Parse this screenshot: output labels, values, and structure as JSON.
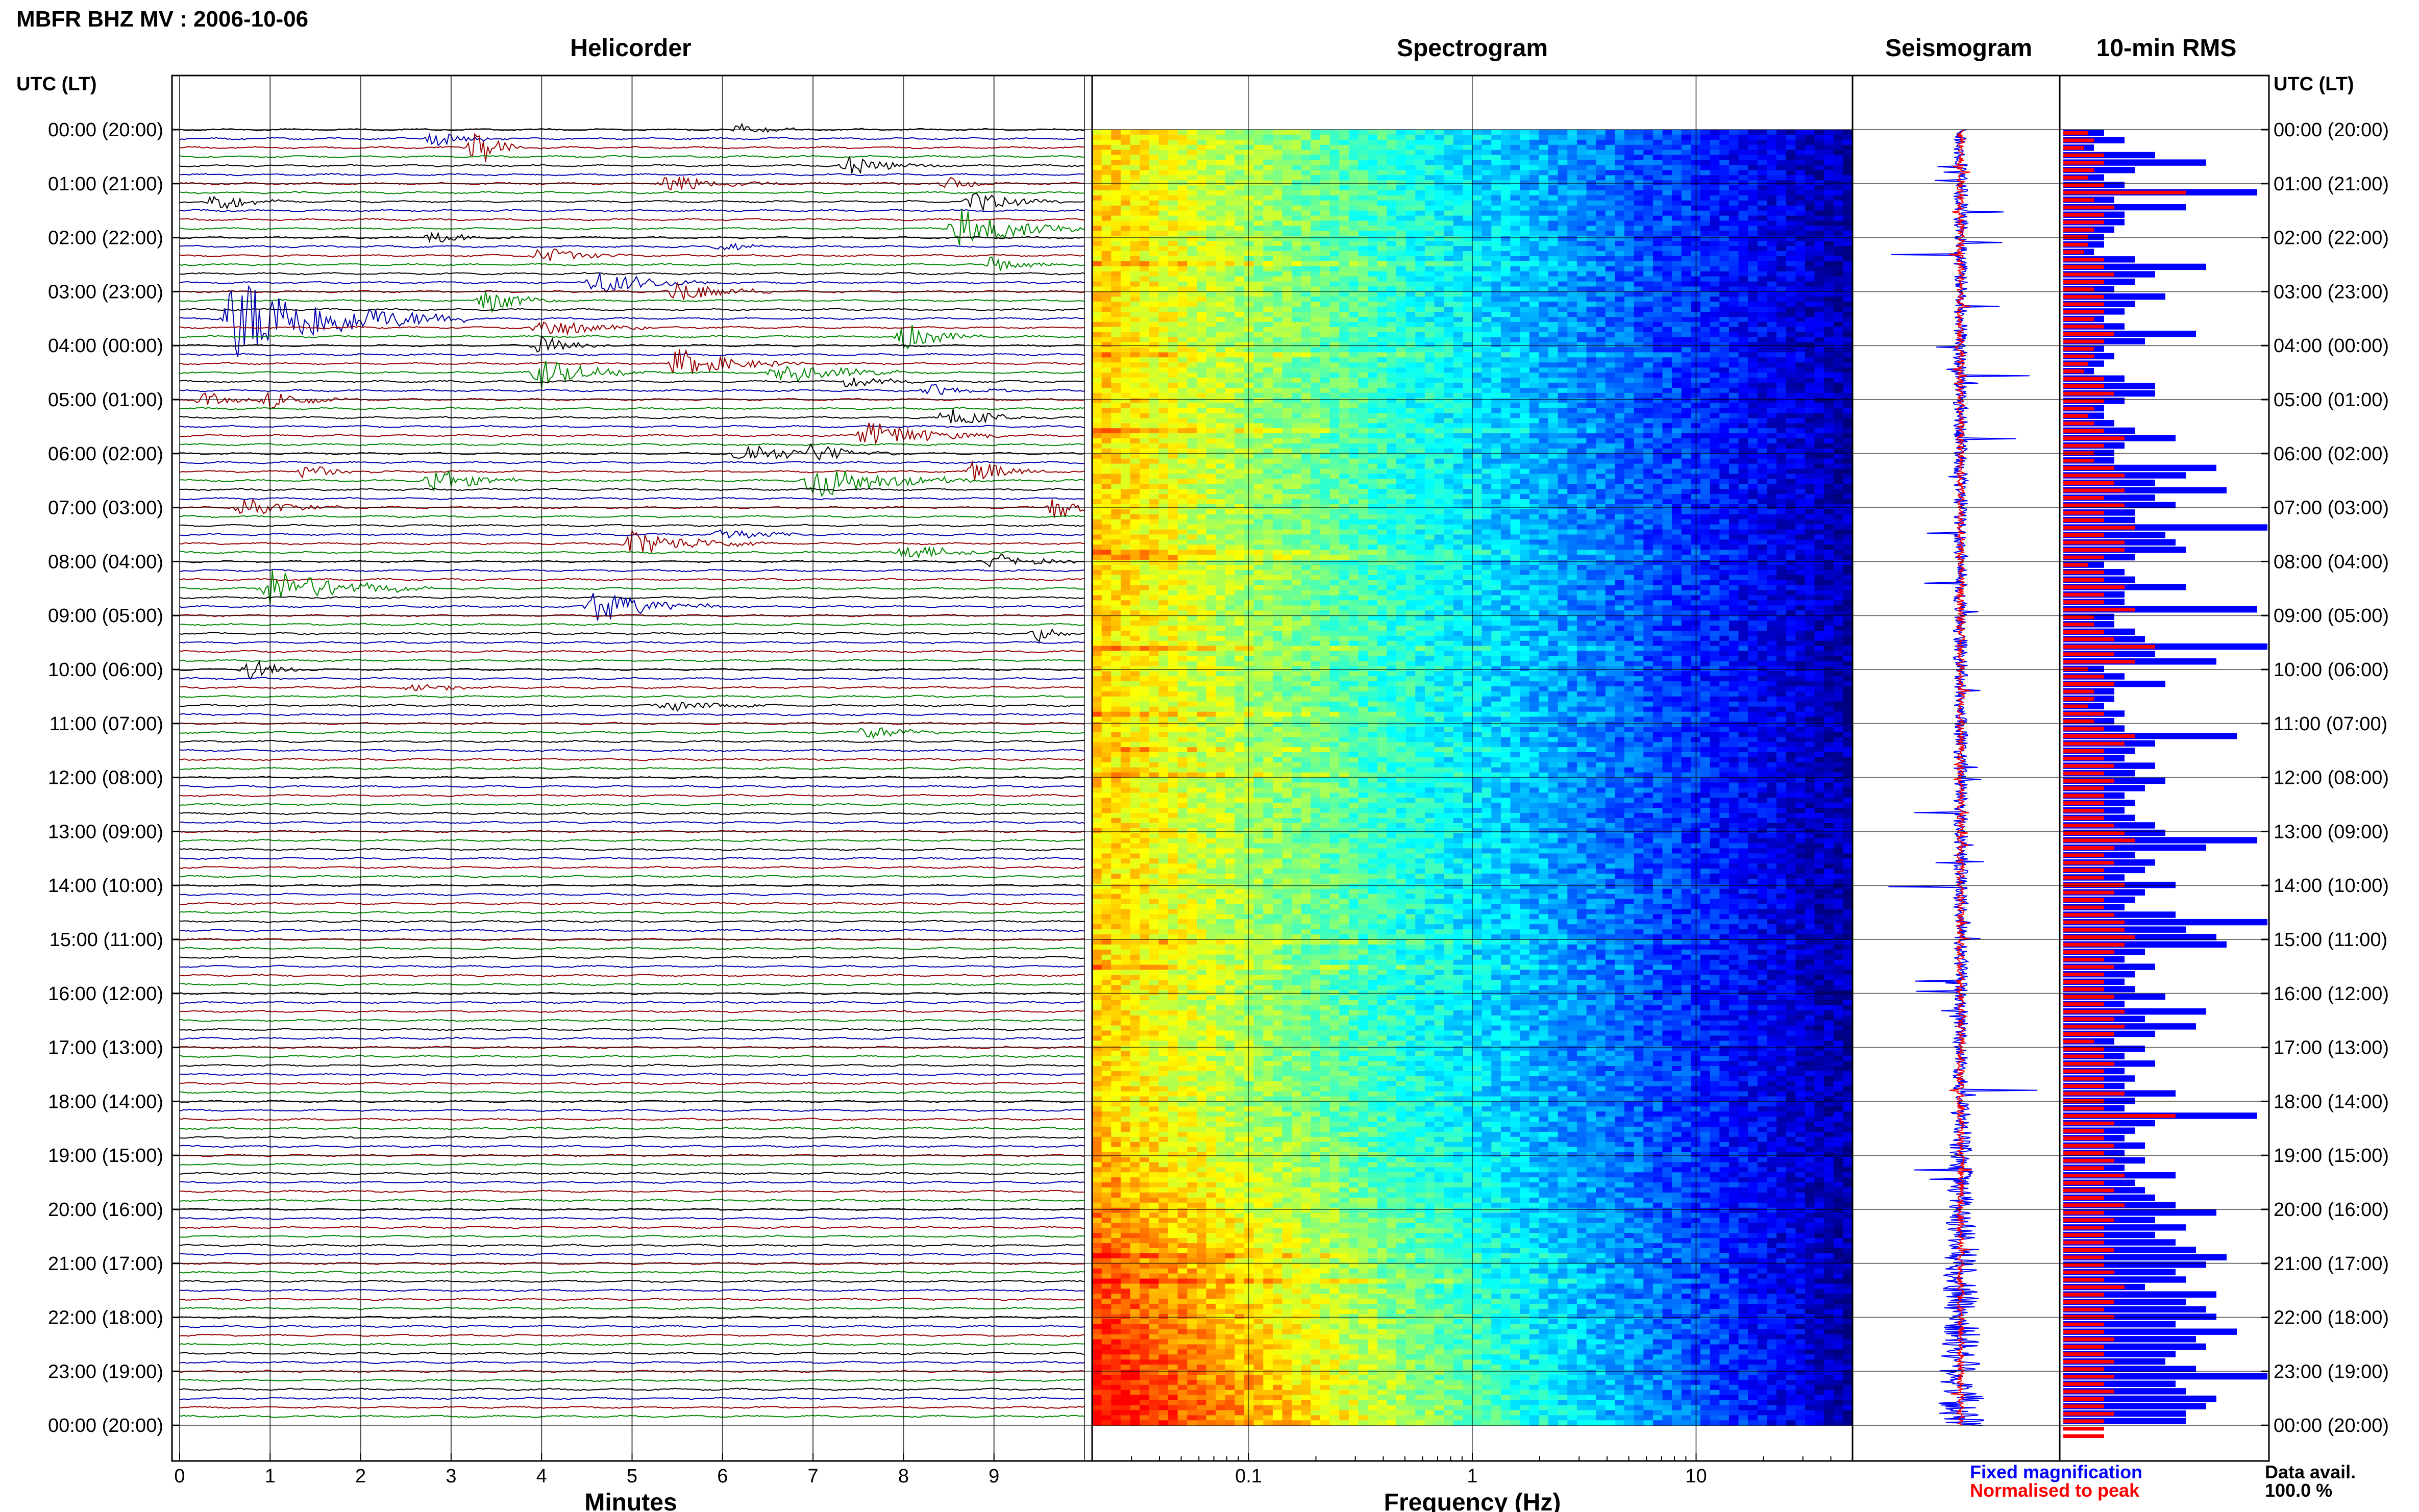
{
  "page_title": "MBFR BHZ MV : 2006-10-06",
  "chart_data": {
    "type": "heatmap",
    "panels": {
      "helicorder": {
        "title": "Helicorder",
        "xlabel": "Minutes",
        "xlim": [
          0,
          10
        ],
        "xticks": [
          "0",
          "1",
          "2",
          "3",
          "4",
          "5",
          "6",
          "7",
          "8",
          "9"
        ],
        "trace_colors": [
          "#000000",
          "#0000aa",
          "#990000",
          "#008800"
        ],
        "rows_per_hour": 6,
        "events": [
          {
            "row": 0,
            "minute": 6.2,
            "amp": 0.5,
            "dur": 0.7
          },
          {
            "row": 1,
            "minute": 2.8,
            "amp": 0.6,
            "dur": 1.0
          },
          {
            "row": 2,
            "minute": 3.3,
            "amp": 1.8,
            "dur": 0.5
          },
          {
            "row": 4,
            "minute": 7.4,
            "amp": 0.8,
            "dur": 1.0
          },
          {
            "row": 6,
            "minute": 5.4,
            "amp": 0.9,
            "dur": 1.2
          },
          {
            "row": 6,
            "minute": 8.5,
            "amp": 0.6,
            "dur": 0.6
          },
          {
            "row": 8,
            "minute": 0.4,
            "amp": 0.9,
            "dur": 0.7
          },
          {
            "row": 8,
            "minute": 8.8,
            "amp": 0.9,
            "dur": 1.0
          },
          {
            "row": 11,
            "minute": 8.6,
            "amp": 1.8,
            "dur": 1.4
          },
          {
            "row": 12,
            "minute": 2.8,
            "amp": 0.5,
            "dur": 0.9
          },
          {
            "row": 13,
            "minute": 6.0,
            "amp": 0.5,
            "dur": 0.6
          },
          {
            "row": 14,
            "minute": 4.0,
            "amp": 0.7,
            "dur": 1.0
          },
          {
            "row": 15,
            "minute": 9.0,
            "amp": 0.7,
            "dur": 0.8
          },
          {
            "row": 17,
            "minute": 4.6,
            "amp": 1.0,
            "dur": 1.4
          },
          {
            "row": 18,
            "minute": 5.5,
            "amp": 0.9,
            "dur": 1.2
          },
          {
            "row": 19,
            "minute": 3.4,
            "amp": 1.0,
            "dur": 0.8
          },
          {
            "row": 21,
            "minute": 0.6,
            "amp": 3.5,
            "dur": 2.6
          },
          {
            "row": 22,
            "minute": 4.0,
            "amp": 0.9,
            "dur": 1.2
          },
          {
            "row": 23,
            "minute": 8.0,
            "amp": 1.2,
            "dur": 0.9
          },
          {
            "row": 24,
            "minute": 4.0,
            "amp": 0.8,
            "dur": 0.8
          },
          {
            "row": 26,
            "minute": 5.5,
            "amp": 1.2,
            "dur": 1.4
          },
          {
            "row": 27,
            "minute": 4.0,
            "amp": 1.2,
            "dur": 1.2
          },
          {
            "row": 27,
            "minute": 6.6,
            "amp": 1.0,
            "dur": 1.6
          },
          {
            "row": 28,
            "minute": 7.4,
            "amp": 0.5,
            "dur": 0.9
          },
          {
            "row": 29,
            "minute": 8.3,
            "amp": 0.5,
            "dur": 1.1
          },
          {
            "row": 30,
            "minute": 0.3,
            "amp": 0.6,
            "dur": 0.7
          },
          {
            "row": 30,
            "minute": 1.0,
            "amp": 0.8,
            "dur": 1.0
          },
          {
            "row": 32,
            "minute": 8.5,
            "amp": 0.8,
            "dur": 1.2
          },
          {
            "row": 34,
            "minute": 7.6,
            "amp": 1.2,
            "dur": 1.6
          },
          {
            "row": 36,
            "minute": 6.2,
            "amp": 1.0,
            "dur": 1.2
          },
          {
            "row": 36,
            "minute": 7.0,
            "amp": 0.8,
            "dur": 1.0
          },
          {
            "row": 38,
            "minute": 1.4,
            "amp": 0.6,
            "dur": 0.9
          },
          {
            "row": 38,
            "minute": 8.8,
            "amp": 1.0,
            "dur": 0.9
          },
          {
            "row": 39,
            "minute": 2.8,
            "amp": 1.1,
            "dur": 1.0
          },
          {
            "row": 39,
            "minute": 7.0,
            "amp": 1.6,
            "dur": 1.8
          },
          {
            "row": 42,
            "minute": 0.7,
            "amp": 0.9,
            "dur": 1.1
          },
          {
            "row": 42,
            "minute": 9.7,
            "amp": 1.2,
            "dur": 0.5
          },
          {
            "row": 45,
            "minute": 6.0,
            "amp": 0.6,
            "dur": 1.0
          },
          {
            "row": 46,
            "minute": 5.0,
            "amp": 1.1,
            "dur": 1.6
          },
          {
            "row": 47,
            "minute": 8.0,
            "amp": 0.7,
            "dur": 1.2
          },
          {
            "row": 48,
            "minute": 9.0,
            "amp": 0.7,
            "dur": 1.0
          },
          {
            "row": 51,
            "minute": 1.0,
            "amp": 1.6,
            "dur": 1.8
          },
          {
            "row": 53,
            "minute": 4.6,
            "amp": 1.4,
            "dur": 1.4
          },
          {
            "row": 56,
            "minute": 9.5,
            "amp": 0.7,
            "dur": 0.4
          },
          {
            "row": 60,
            "minute": 0.8,
            "amp": 0.9,
            "dur": 0.6
          },
          {
            "row": 62,
            "minute": 2.6,
            "amp": 0.4,
            "dur": 1.0
          },
          {
            "row": 64,
            "minute": 5.4,
            "amp": 0.5,
            "dur": 1.2
          },
          {
            "row": 67,
            "minute": 7.6,
            "amp": 0.6,
            "dur": 1.0
          }
        ]
      },
      "spectrogram": {
        "title": "Spectrogram",
        "xlabel": "Frequency (Hz)",
        "xscale": "log",
        "xlim": [
          0.02,
          50
        ],
        "xticks": [
          {
            "value": 0.1,
            "label": "0.1"
          },
          {
            "value": 1,
            "label": "1"
          },
          {
            "value": 10,
            "label": "10"
          }
        ],
        "colormap": [
          "#00007f",
          "#0000ff",
          "#007fff",
          "#00ffff",
          "#7fff7f",
          "#ffff00",
          "#ff7f00",
          "#ff0000"
        ]
      },
      "seismogram": {
        "title": "Seismogram",
        "series": [
          {
            "name": "Fixed magnification",
            "color": "#0000ff"
          },
          {
            "name": "Normalised to peak",
            "color": "#ff0000"
          }
        ]
      },
      "rms": {
        "title": "10-min RMS",
        "series_colors": {
          "blue": "#0000ff",
          "red": "#ff0000"
        },
        "blue": [
          0.2,
          0.3,
          0.15,
          0.45,
          0.7,
          0.35,
          0.2,
          0.3,
          0.95,
          0.25,
          0.6,
          0.3,
          0.3,
          0.25,
          0.2,
          0.2,
          0.15,
          0.35,
          0.7,
          0.45,
          0.35,
          0.25,
          0.5,
          0.35,
          0.3,
          0.2,
          0.3,
          0.65,
          0.4,
          0.2,
          0.25,
          0.2,
          0.15,
          0.3,
          0.45,
          0.45,
          0.3,
          0.2,
          0.2,
          0.25,
          0.35,
          0.55,
          0.3,
          0.25,
          0.25,
          0.75,
          0.6,
          0.45,
          0.8,
          0.45,
          0.55,
          0.35,
          0.35,
          1.0,
          0.5,
          0.55,
          0.6,
          0.35,
          0.2,
          0.3,
          0.35,
          0.6,
          0.3,
          0.3,
          0.95,
          0.25,
          0.25,
          0.35,
          0.4,
          1.0,
          0.45,
          0.75,
          0.2,
          0.3,
          0.5,
          0.25,
          0.25,
          0.2,
          0.3,
          0.25,
          0.3,
          0.85,
          0.45,
          0.35,
          0.3,
          0.45,
          0.35,
          0.5,
          0.4,
          0.3,
          0.35,
          0.3,
          0.35,
          0.45,
          0.5,
          0.95,
          0.7,
          0.35,
          0.45,
          0.4,
          0.3,
          0.55,
          0.4,
          0.35,
          0.3,
          0.55,
          1.0,
          0.6,
          0.75,
          0.8,
          0.4,
          0.3,
          0.45,
          0.35,
          0.3,
          0.35,
          0.5,
          0.3,
          0.7,
          0.4,
          0.65,
          0.45,
          0.25,
          0.4,
          0.3,
          0.45,
          0.3,
          0.35,
          0.3,
          0.55,
          0.35,
          0.3,
          0.95,
          0.45,
          0.35,
          0.3,
          0.4,
          0.3,
          0.4,
          0.3,
          0.55,
          0.35,
          0.4,
          0.45,
          0.55,
          0.75,
          0.45,
          0.6,
          0.45,
          0.55,
          0.65,
          0.8,
          0.7,
          0.55,
          0.6,
          0.4,
          0.75,
          0.6,
          0.7,
          0.75,
          0.55,
          0.85,
          0.65,
          0.7,
          0.55,
          0.5,
          0.65,
          1.0,
          0.55,
          0.6,
          0.75,
          0.7,
          0.6,
          0.6
        ],
        "red": [
          0.12,
          0.15,
          0.1,
          0.2,
          0.2,
          0.15,
          0.12,
          0.2,
          0.6,
          0.15,
          0.25,
          0.2,
          0.2,
          0.15,
          0.12,
          0.12,
          0.1,
          0.2,
          0.2,
          0.25,
          0.2,
          0.15,
          0.2,
          0.2,
          0.2,
          0.15,
          0.2,
          0.25,
          0.2,
          0.15,
          0.15,
          0.12,
          0.1,
          0.2,
          0.2,
          0.25,
          0.2,
          0.15,
          0.12,
          0.15,
          0.2,
          0.3,
          0.2,
          0.15,
          0.15,
          0.25,
          0.3,
          0.25,
          0.3,
          0.2,
          0.3,
          0.2,
          0.2,
          0.35,
          0.2,
          0.3,
          0.3,
          0.2,
          0.12,
          0.2,
          0.2,
          0.3,
          0.2,
          0.2,
          0.35,
          0.15,
          0.15,
          0.2,
          0.25,
          0.45,
          0.25,
          0.35,
          0.12,
          0.2,
          0.25,
          0.15,
          0.15,
          0.12,
          0.2,
          0.15,
          0.2,
          0.35,
          0.3,
          0.2,
          0.2,
          0.25,
          0.2,
          0.25,
          0.2,
          0.2,
          0.2,
          0.2,
          0.2,
          0.25,
          0.3,
          0.35,
          0.25,
          0.2,
          0.25,
          0.2,
          0.2,
          0.3,
          0.25,
          0.2,
          0.2,
          0.25,
          0.3,
          0.3,
          0.35,
          0.3,
          0.25,
          0.2,
          0.25,
          0.2,
          0.2,
          0.2,
          0.25,
          0.2,
          0.3,
          0.25,
          0.3,
          0.25,
          0.15,
          0.2,
          0.2,
          0.25,
          0.2,
          0.2,
          0.2,
          0.3,
          0.2,
          0.2,
          0.55,
          0.25,
          0.2,
          0.2,
          0.25,
          0.2,
          0.25,
          0.2,
          0.3,
          0.2,
          0.25,
          0.2,
          0.3,
          0.2,
          0.25,
          0.2,
          0.2,
          0.2,
          0.25,
          0.2,
          0.2,
          0.25,
          0.2,
          0.3,
          0.2,
          0.25,
          0.2,
          0.25,
          0.2,
          0.2,
          0.25,
          0.2,
          0.2,
          0.25,
          0.2,
          0.25,
          0.2,
          0.25,
          0.2,
          0.2,
          0.25,
          0.2,
          0.2,
          0.2
        ]
      }
    },
    "y_axis": {
      "title_left": "UTC (LT)",
      "title_right": "UTC (LT)",
      "labels": [
        "00:00 (20:00)",
        "01:00 (21:00)",
        "02:00 (22:00)",
        "03:00 (23:00)",
        "04:00 (00:00)",
        "05:00 (01:00)",
        "06:00 (02:00)",
        "07:00 (03:00)",
        "08:00 (04:00)",
        "09:00 (05:00)",
        "10:00 (06:00)",
        "11:00 (07:00)",
        "12:00 (08:00)",
        "13:00 (09:00)",
        "14:00 (10:00)",
        "15:00 (11:00)",
        "16:00 (12:00)",
        "17:00 (13:00)",
        "18:00 (14:00)",
        "19:00 (15:00)",
        "20:00 (16:00)",
        "21:00 (17:00)",
        "22:00 (18:00)",
        "23:00 (19:00)",
        "00:00 (20:00)"
      ]
    },
    "legend": {
      "fixed": "Fixed magnification",
      "normalised": "Normalised to peak"
    },
    "data_availability": {
      "label": "Data avail.",
      "value": "100.0 %"
    }
  }
}
